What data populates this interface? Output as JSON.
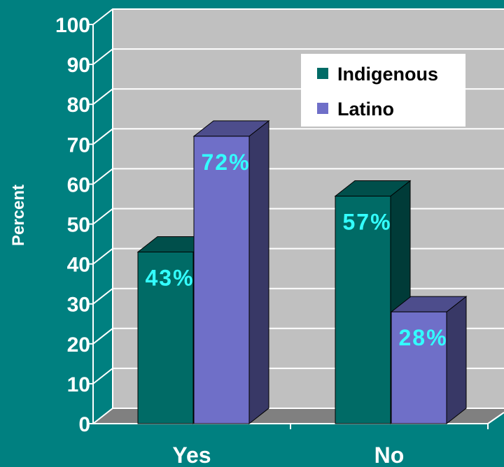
{
  "chart_data": {
    "type": "bar",
    "ylabel": "Percent",
    "ylim": [
      0,
      100
    ],
    "yticks": [
      0,
      10,
      20,
      30,
      40,
      50,
      60,
      70,
      80,
      90,
      100
    ],
    "categories": [
      "Yes",
      "No"
    ],
    "series": [
      {
        "name": "Indigenous",
        "values": [
          43,
          57
        ],
        "labels": [
          "43%",
          "57%"
        ]
      },
      {
        "name": "Latino",
        "values": [
          72,
          28
        ],
        "labels": [
          "72%",
          "28%"
        ]
      }
    ],
    "legend": "top-right",
    "grid": true,
    "three_d": true
  },
  "colors": {
    "background": "#008080",
    "wall": "#c0c0c0",
    "floor": "#808080",
    "grid": "#ffffff",
    "label": "#33ffff",
    "series": [
      {
        "front": "#006b66",
        "side": "#003b38",
        "top": "#004f4b"
      },
      {
        "front": "#6f6fc8",
        "side": "#383866",
        "top": "#4d4d8c"
      }
    ]
  }
}
